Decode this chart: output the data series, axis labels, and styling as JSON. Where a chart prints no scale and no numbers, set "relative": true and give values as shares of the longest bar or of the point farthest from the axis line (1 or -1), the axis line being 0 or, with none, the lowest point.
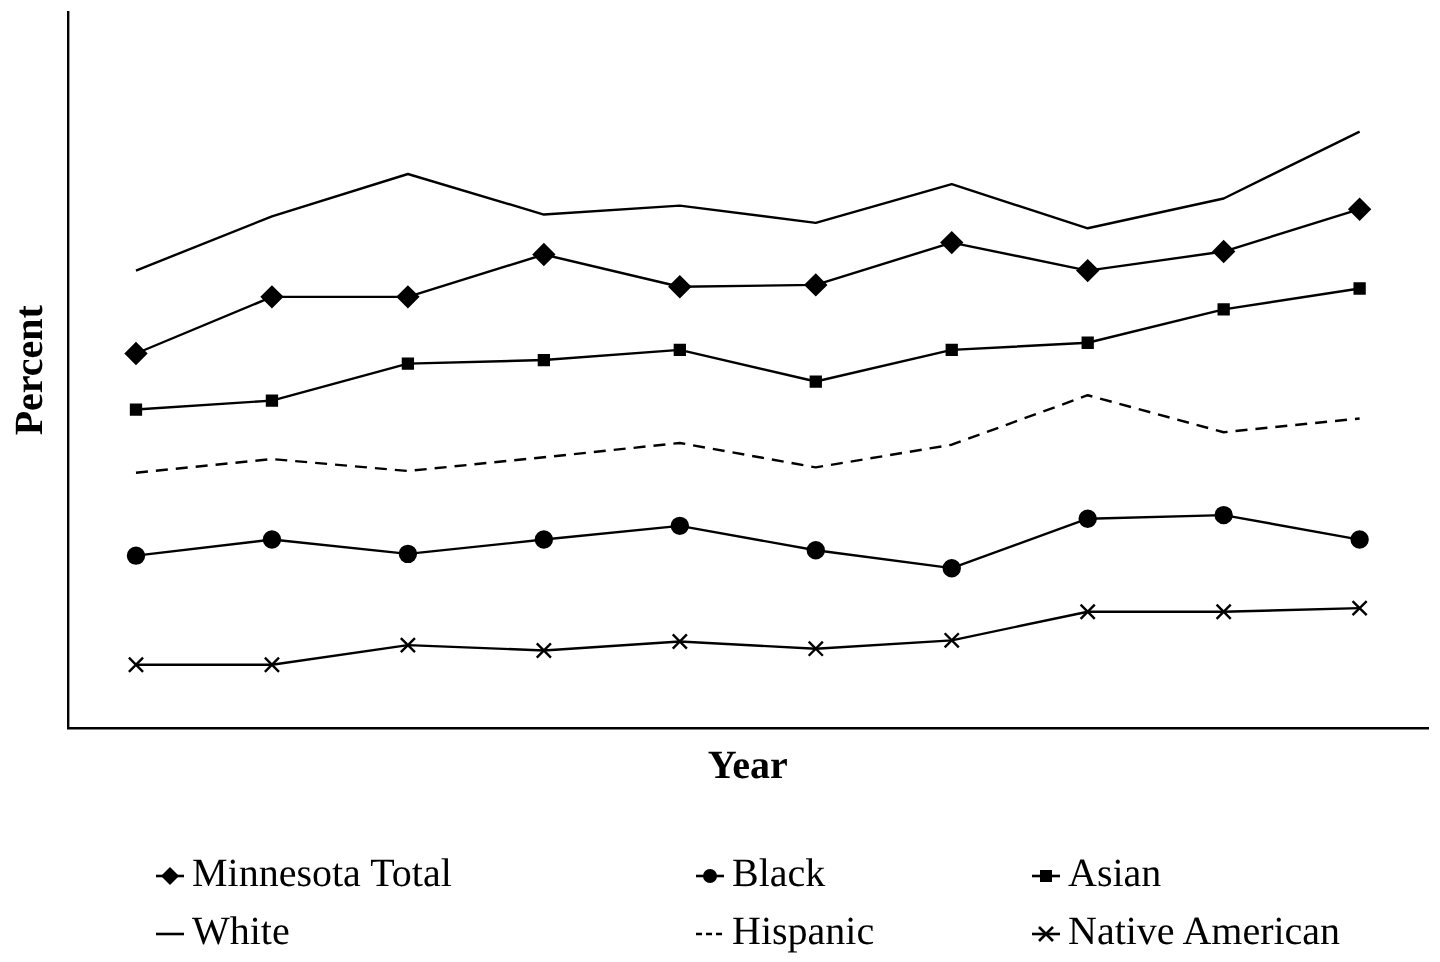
{
  "chart_data": {
    "type": "line",
    "xlabel": "Year",
    "ylabel": "Percent",
    "relative": true,
    "legend": "bottom",
    "grid": false,
    "categories": [
      null,
      null,
      null,
      null,
      null,
      null,
      null,
      null,
      null,
      null
    ],
    "series": [
      {
        "name": "White",
        "color": "#000000",
        "marker": "none",
        "line_style": "solid",
        "values": [
          0.767,
          0.858,
          0.929,
          0.861,
          0.876,
          0.847,
          0.912,
          0.838,
          0.888,
          1
        ]
      },
      {
        "name": "Minnesota Total",
        "color": "#000000",
        "marker": "diamond",
        "line_style": "solid",
        "values": [
          0.628,
          0.723,
          0.723,
          0.794,
          0.74,
          0.743,
          0.814,
          0.767,
          0.799,
          0.87
        ]
      },
      {
        "name": "Asian",
        "color": "#000000",
        "marker": "square",
        "line_style": "solid",
        "values": [
          0.534,
          0.549,
          0.611,
          0.617,
          0.634,
          0.581,
          0.634,
          0.646,
          0.702,
          0.737
        ]
      },
      {
        "name": "Hispanic",
        "color": "#000000",
        "marker": "none",
        "line_style": "dashed",
        "values": [
          0.428,
          0.451,
          0.431,
          0.454,
          0.478,
          0.437,
          0.475,
          0.558,
          0.496,
          0.519
        ]
      },
      {
        "name": "Black",
        "color": "#000000",
        "marker": "circle",
        "line_style": "solid",
        "values": [
          0.289,
          0.316,
          0.292,
          0.316,
          0.339,
          0.298,
          0.268,
          0.351,
          0.357,
          0.316
        ]
      },
      {
        "name": "Native American",
        "color": "#000000",
        "marker": "cross",
        "line_style": "solid",
        "values": [
          0.106,
          0.106,
          0.139,
          0.13,
          0.145,
          0.133,
          0.147,
          0.195,
          0.195,
          0.201
        ]
      }
    ]
  }
}
